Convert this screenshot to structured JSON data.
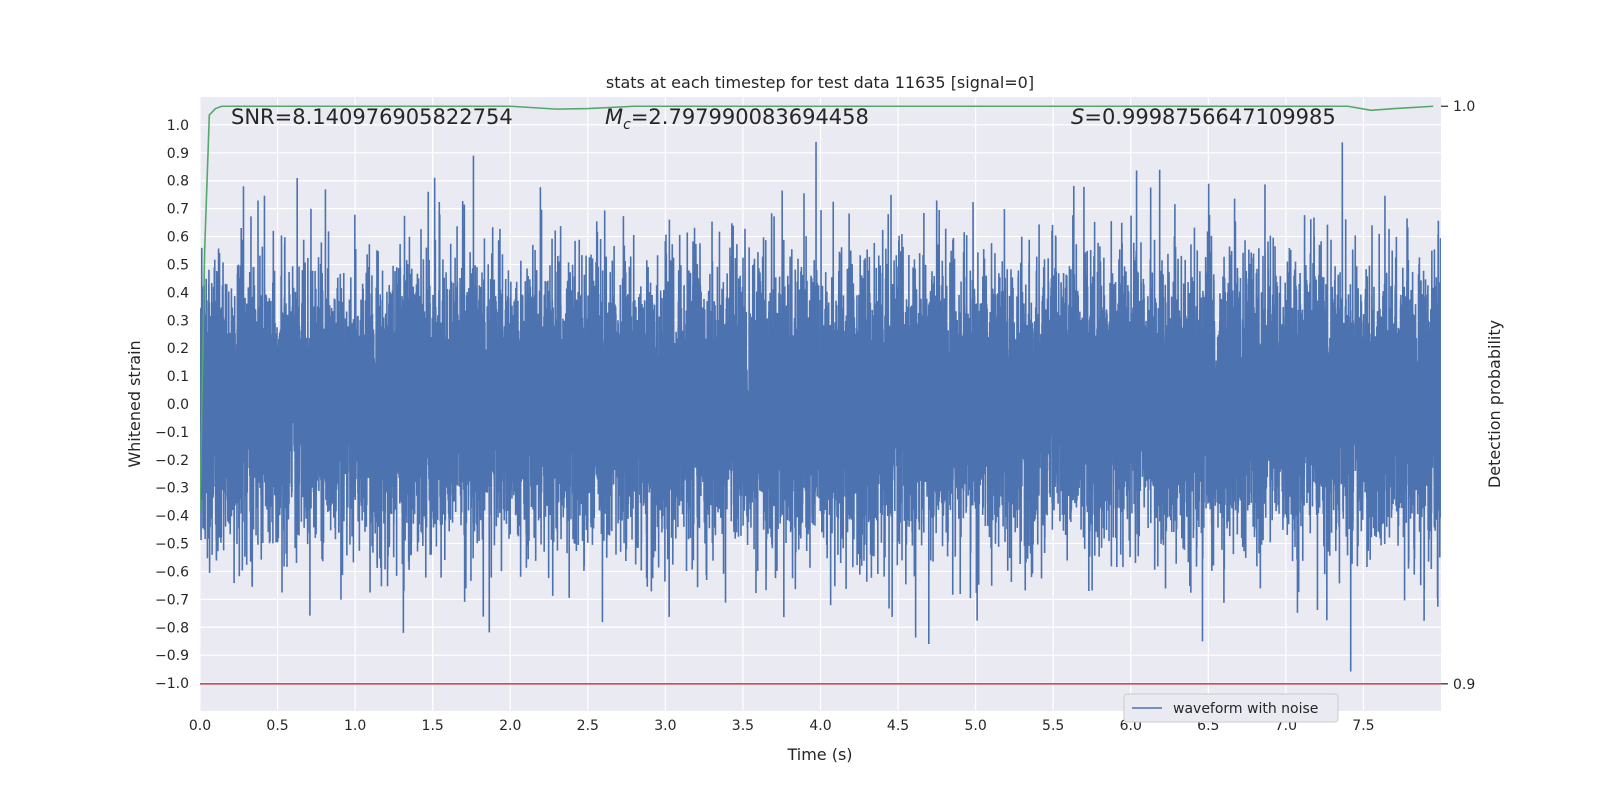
{
  "chart_data": {
    "type": "line",
    "title": "stats at each timestep for test data 11635 [signal=0]",
    "xlabel": "Time (s)",
    "ylabel": "Whitened strain",
    "ylabel_right": "Detection probability",
    "xlim": [
      0,
      8
    ],
    "ylim": [
      -1.1,
      1.1
    ],
    "ylim_right": [
      0.8953,
      1.0016
    ],
    "x_ticks": [
      "0.0",
      "0.5",
      "1.0",
      "1.5",
      "2.0",
      "2.5",
      "3.0",
      "3.5",
      "4.0",
      "4.5",
      "5.0",
      "5.5",
      "6.0",
      "6.5",
      "7.0",
      "7.5"
    ],
    "y_ticks": [
      "1.0",
      "0.9",
      "0.8",
      "0.7",
      "0.6",
      "0.5",
      "0.4",
      "0.3",
      "0.2",
      "0.1",
      "0.0",
      "−0.1",
      "−0.2",
      "−0.3",
      "−0.4",
      "−0.5",
      "−0.6",
      "−0.7",
      "−0.8",
      "−0.9",
      "−1.0"
    ],
    "y_ticks_right": [
      "1.0",
      "0.9"
    ],
    "grid": true,
    "legend_position": "bottom-right",
    "stats": {
      "snr": "SNR=8.140976905822754",
      "mc_symbol": "M",
      "mc_sub": "c",
      "mc_value": "=2.797990083694458",
      "s_symbol": "S",
      "s_value": "=0.9998756647109985"
    },
    "series": [
      {
        "name": "waveform with noise",
        "color": "#4c72b0",
        "kind": "noise",
        "x_range": [
          0,
          8
        ],
        "sample_rate": 2048,
        "typical_amplitude": [
          -0.35,
          0.35
        ],
        "peak_max": 0.97,
        "peak_min": -1.0
      },
      {
        "name": "",
        "color": "#55a868",
        "axis": "right",
        "x": [
          0.0,
          0.03,
          0.06,
          0.1,
          0.14,
          0.2,
          0.5,
          1.0,
          1.5,
          2.0,
          2.3,
          2.5,
          2.8,
          3.0,
          3.5,
          4.0,
          4.5,
          5.0,
          5.5,
          6.0,
          6.5,
          7.0,
          7.4,
          7.55,
          7.7,
          7.95
        ],
        "y": [
          0.93,
          0.975,
          0.9985,
          0.9996,
          1.0,
          1.0,
          1.0,
          1.0,
          1.0,
          1.0,
          0.9995,
          0.9996,
          1.0,
          1.0,
          1.0,
          1.0,
          1.0,
          1.0,
          1.0,
          1.0,
          1.0,
          1.0,
          1.0,
          0.9993,
          0.9996,
          1.0
        ]
      },
      {
        "name": "",
        "color": "#c44e52",
        "axis": "right",
        "x": [
          0,
          8
        ],
        "y": [
          0.9,
          0.9
        ]
      }
    ]
  }
}
